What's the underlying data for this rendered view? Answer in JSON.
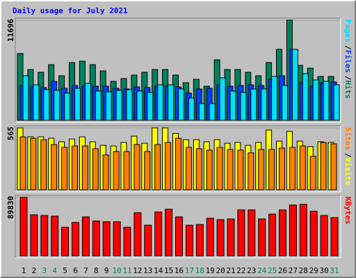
{
  "chart_data": [
    {
      "type": "bar",
      "title": "Daily usage for July 2021",
      "title_color": "#0000ff",
      "categories": [
        "1",
        "2",
        "3",
        "4",
        "5",
        "6",
        "7",
        "8",
        "9",
        "10",
        "11",
        "12",
        "13",
        "14",
        "15",
        "16",
        "17",
        "18",
        "19",
        "20",
        "21",
        "22",
        "23",
        "24",
        "25",
        "26",
        "27",
        "28",
        "29",
        "30",
        "31"
      ],
      "category_colors": [
        "#000000",
        "#000000",
        "#00805c",
        "#00805c",
        "#000000",
        "#000000",
        "#000000",
        "#000000",
        "#000000",
        "#00805c",
        "#00805c",
        "#000000",
        "#000000",
        "#000000",
        "#000000",
        "#000000",
        "#00805c",
        "#00805c",
        "#000000",
        "#000000",
        "#000000",
        "#000000",
        "#000000",
        "#00805c",
        "#00805c",
        "#000000",
        "#000000",
        "#000000",
        "#000000",
        "#000000",
        "#00805c"
      ],
      "legend_separator": "/",
      "ylim": [
        0,
        11696
      ],
      "yticks": [
        11696
      ],
      "series": [
        {
          "name": "Hits",
          "color": "#00805c",
          "values": [
            7797,
            5929,
            5604,
            6498,
            5198,
            6741,
            6904,
            6498,
            5767,
            4548,
            4873,
            5279,
            5604,
            5929,
            5929,
            5279,
            4386,
            4792,
            3980,
            7066,
            5929,
            5929,
            5604,
            5198,
            6741,
            8285,
            11696,
            6417,
            6092,
            5117,
            5117
          ]
        },
        {
          "name": "Files",
          "color": "#0040ff",
          "values": [
            4061,
            3979,
            3817,
            4548,
            3736,
            4061,
            4061,
            3979,
            3979,
            3736,
            3655,
            3898,
            3817,
            3979,
            3979,
            3898,
            3168,
            3655,
            3736,
            4142,
            3979,
            4061,
            4142,
            4061,
            4792,
            5198,
            8285,
            4386,
            3979,
            4386,
            4467
          ]
        },
        {
          "name": "Pages",
          "color": "#00e0ff",
          "values": [
            5198,
            4142,
            3573,
            3492,
            3168,
            3736,
            4305,
            3411,
            3330,
            3492,
            3573,
            3411,
            3249,
            4142,
            4142,
            3655,
            2599,
            1949,
            1949,
            4955,
            3411,
            3249,
            3655,
            3655,
            5117,
            4061,
            8285,
            5442,
            4711,
            4548,
            4142
          ]
        }
      ]
    },
    {
      "type": "bar",
      "ylim": [
        0,
        565
      ],
      "yticks": [
        565
      ],
      "series": [
        {
          "name": "Visits",
          "color": "#ffff00",
          "values": [
            565,
            483,
            483,
            470,
            438,
            463,
            483,
            438,
            406,
            400,
            432,
            489,
            425,
            565,
            565,
            514,
            457,
            457,
            438,
            457,
            425,
            432,
            406,
            432,
            546,
            444,
            533,
            444,
            394,
            438,
            432
          ]
        },
        {
          "name": "Sites",
          "color": "#ff8000",
          "values": [
            483,
            470,
            457,
            413,
            387,
            400,
            400,
            375,
            318,
            349,
            349,
            413,
            349,
            413,
            432,
            470,
            387,
            375,
            362,
            387,
            368,
            362,
            337,
            368,
            368,
            381,
            387,
            400,
            305,
            432,
            419
          ]
        }
      ]
    },
    {
      "type": "bar",
      "ylim": [
        0,
        89830
      ],
      "yticks": [
        89830
      ],
      "series": [
        {
          "name": "KBytes",
          "color": "#ff0000",
          "values": [
            89830,
            63094,
            62025,
            60956,
            43845,
            51331,
            59886,
            53470,
            52401,
            52401,
            43845,
            66302,
            47054,
            67372,
            71650,
            59886,
            47054,
            48123,
            57748,
            55609,
            56678,
            70581,
            70581,
            56678,
            64164,
            70581,
            78066,
            79135,
            68441,
            62025,
            58817
          ]
        }
      ]
    }
  ]
}
